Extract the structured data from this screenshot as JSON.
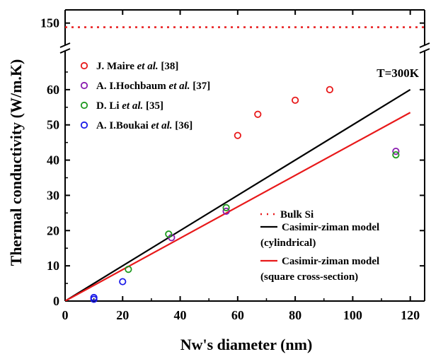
{
  "chart_data": {
    "type": "scatter",
    "title": "",
    "xlabel": "Nw's diameter (nm)",
    "ylabel": "Thermal conductivity (W/m.K)",
    "xlim": [
      0,
      125
    ],
    "ylim": [
      0,
      70
    ],
    "ylim_upper_break": [
      140,
      155
    ],
    "x_ticks": [
      0,
      20,
      40,
      60,
      80,
      100,
      120
    ],
    "y_ticks": [
      0,
      10,
      20,
      30,
      40,
      50,
      60
    ],
    "y_ticks_upper": [
      150
    ],
    "annotation": "T=300K",
    "series": [
      {
        "name": "J. Maire",
        "name_suffix": "et al.",
        "ref": "[38]",
        "kind": "scatter",
        "marker": "open-circle",
        "color": "#e8191a",
        "x": [
          60,
          67,
          80,
          92
        ],
        "y": [
          47,
          53,
          57,
          60
        ]
      },
      {
        "name": "A. I.Hochbaum",
        "name_suffix": "et al.",
        "ref": "[37]",
        "kind": "scatter",
        "marker": "open-circle",
        "color": "#8a1cb0",
        "x": [
          37,
          56,
          115
        ],
        "y": [
          18,
          25.5,
          42.5
        ]
      },
      {
        "name": "D. Li",
        "name_suffix": "et al.",
        "ref": "[35]",
        "kind": "scatter",
        "marker": "open-circle",
        "color": "#1f9a1f",
        "x": [
          22,
          36,
          56,
          115
        ],
        "y": [
          9,
          19,
          26.5,
          41.5
        ]
      },
      {
        "name": "A. I.Boukai",
        "name_suffix": "et al.",
        "ref": "[36]",
        "kind": "scatter",
        "marker": "open-circle",
        "color": "#1a1ae8",
        "x": [
          10,
          10,
          20
        ],
        "y": [
          0.5,
          1,
          5.5
        ]
      },
      {
        "name": "Bulk Si",
        "kind": "hline",
        "style": "dotted",
        "color": "#e8191a",
        "y": 148
      },
      {
        "name": "Casimir-ziman model",
        "name_line2": "(cylindrical)",
        "kind": "line",
        "color": "#000000",
        "x": [
          0,
          120
        ],
        "y": [
          0,
          60
        ]
      },
      {
        "name": "Casimir-ziman model",
        "name_line2": "(square cross-section)",
        "kind": "line",
        "color": "#e8191a",
        "x": [
          0,
          120
        ],
        "y": [
          0,
          53.5
        ]
      }
    ]
  }
}
